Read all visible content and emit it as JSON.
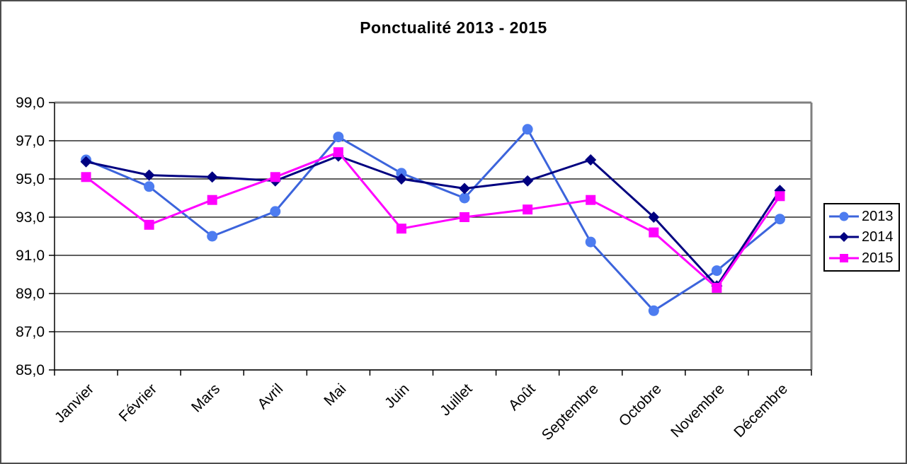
{
  "window": {
    "background_color": "#ffffff",
    "frame_border_color": "#4d4d4d"
  },
  "chart_data": {
    "type": "line",
    "title": "Ponctualité 2013 - 2015",
    "xlabel": "",
    "ylabel": "",
    "categories": [
      "Janvier",
      "Février",
      "Mars",
      "Avril",
      "Mai",
      "Juin",
      "Juillet",
      "Août",
      "Septembre",
      "Octobre",
      "Novembre",
      "Décembre"
    ],
    "series": [
      {
        "name": "2013",
        "marker": "circle",
        "line_color": "#3C64DC",
        "marker_color": "#4D7CF0",
        "values": [
          96.0,
          94.6,
          92.0,
          93.3,
          97.2,
          95.3,
          94.0,
          97.6,
          91.7,
          88.1,
          90.2,
          92.9
        ]
      },
      {
        "name": "2014",
        "marker": "diamond",
        "line_color": "#000080",
        "marker_color": "#000080",
        "values": [
          95.9,
          95.2,
          95.1,
          94.9,
          96.2,
          95.0,
          94.5,
          94.9,
          96.0,
          93.0,
          89.4,
          94.4
        ]
      },
      {
        "name": "2015",
        "marker": "square",
        "line_color": "#FF00FF",
        "marker_color": "#FF00FF",
        "values": [
          95.1,
          92.6,
          93.9,
          95.1,
          96.4,
          92.4,
          93.0,
          93.4,
          93.9,
          92.2,
          89.3,
          94.1
        ]
      }
    ],
    "ylim": [
      85,
      99
    ],
    "ytick_step": 2,
    "ytick_labels": [
      "85,0",
      "87,0",
      "89,0",
      "91,0",
      "93,0",
      "95,0",
      "97,0",
      "99,0"
    ],
    "grid": "horizontal",
    "gridline_color": "#000000",
    "plot_border_color": "#808080",
    "legend_position": "right"
  }
}
